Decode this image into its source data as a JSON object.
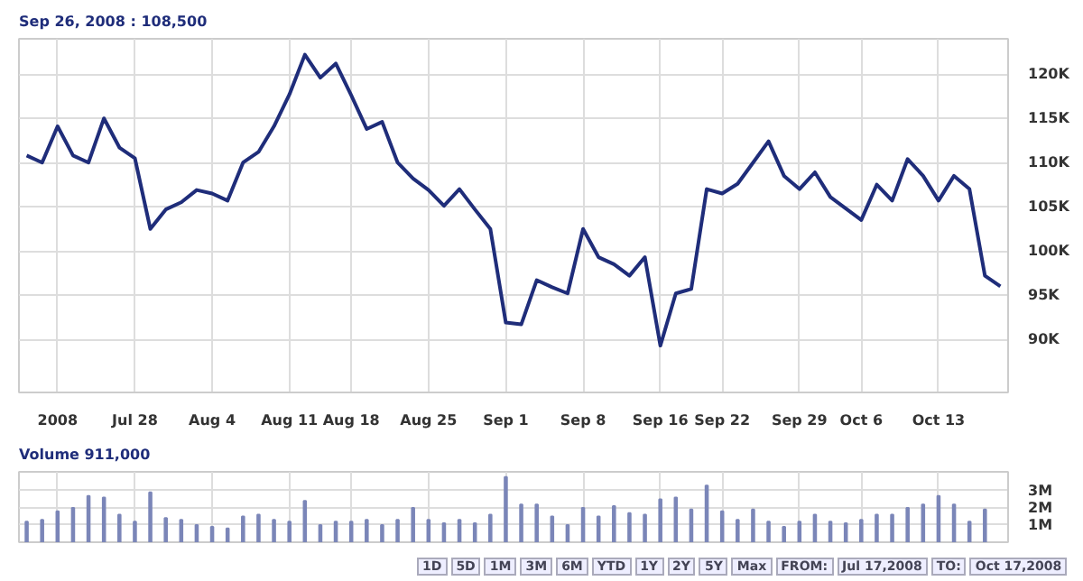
{
  "chart_data": [
    {
      "type": "line",
      "title": "Sep 26, 2008 : 108,500",
      "categories": [
        null,
        null,
        "2008",
        null,
        null,
        null,
        null,
        "Jul 28",
        null,
        null,
        null,
        null,
        "Aug 4",
        null,
        null,
        null,
        null,
        "Aug 11",
        null,
        null,
        null,
        "Aug 18",
        null,
        null,
        null,
        null,
        "Aug 25",
        null,
        null,
        null,
        null,
        "Sep 1",
        null,
        null,
        null,
        null,
        "Sep 8",
        null,
        null,
        null,
        null,
        "Sep 16",
        null,
        null,
        null,
        "Sep 22",
        null,
        null,
        null,
        null,
        "Sep 29",
        null,
        null,
        null,
        "Oct 6",
        null,
        null,
        null,
        null,
        "Oct 13",
        null,
        null,
        null,
        null
      ],
      "series": [
        {
          "color": "#1f2d7a",
          "values": [
            110800,
            110000,
            114100,
            110800,
            110000,
            115000,
            111700,
            110500,
            102500,
            104700,
            105500,
            106900,
            106500,
            105700,
            110000,
            111200,
            114100,
            117700,
            122200,
            119600,
            121200,
            117600,
            113800,
            114600,
            110000,
            108200,
            106900,
            105100,
            107000,
            104700,
            102500,
            91900,
            91700,
            96700,
            95900,
            95200,
            102500,
            99300,
            98500,
            97200,
            99300,
            89300,
            95200,
            95700,
            107000,
            106500,
            107600,
            110000,
            112400,
            108500,
            107000,
            108900,
            106100,
            104800,
            103500,
            107500,
            105700,
            110400,
            108500,
            105700,
            108500,
            107000,
            97200,
            96000
          ]
        }
      ],
      "ylim": [
        84000,
        124000
      ],
      "yticks": [
        {
          "value": 90000,
          "label": "90K"
        },
        {
          "value": 95000,
          "label": "95K"
        },
        {
          "value": 100000,
          "label": "100K"
        },
        {
          "value": 105000,
          "label": "105K"
        },
        {
          "value": 110000,
          "label": "110K"
        },
        {
          "value": 115000,
          "label": "115K"
        },
        {
          "value": 120000,
          "label": "120K"
        }
      ],
      "grid": true
    },
    {
      "type": "bar",
      "title": "Volume 911,000",
      "categories": [
        null,
        null,
        null,
        null,
        null,
        null,
        null,
        null,
        null,
        null,
        null,
        null,
        null,
        null,
        null,
        null,
        null,
        null,
        null,
        null,
        null,
        null,
        null,
        null,
        null,
        null,
        null,
        null,
        null,
        null,
        null,
        null,
        null,
        null,
        null,
        null,
        null,
        null,
        null,
        null,
        null,
        null,
        null,
        null,
        null,
        null,
        null,
        null,
        null,
        null,
        null,
        null,
        null,
        null,
        null,
        null,
        null,
        null,
        null,
        null,
        null,
        null,
        null,
        null
      ],
      "series": [
        {
          "color": "#7b86b8",
          "values": [
            1200000,
            1300000,
            1800000,
            2000000,
            2700000,
            2600000,
            1600000,
            1200000,
            2900000,
            1400000,
            1300000,
            1000000,
            900000,
            800000,
            1500000,
            1600000,
            1300000,
            1200000,
            2400000,
            1000000,
            1200000,
            1200000,
            1300000,
            1000000,
            1300000,
            2000000,
            1300000,
            1100000,
            1300000,
            1100000,
            1600000,
            3800000,
            2200000,
            2200000,
            1500000,
            1000000,
            2000000,
            1500000,
            2100000,
            1700000,
            1600000,
            2500000,
            2600000,
            1900000,
            3300000,
            1800000,
            1300000,
            1900000,
            1200000,
            900000,
            1200000,
            1600000,
            1200000,
            1100000,
            1300000,
            1600000,
            1600000,
            2000000,
            2200000,
            2700000,
            2200000,
            1200000,
            1900000,
            null
          ]
        }
      ],
      "ylim": [
        0,
        4100000
      ],
      "yticks": [
        {
          "value": 1000000,
          "label": "1M"
        },
        {
          "value": 2000000,
          "label": "2M"
        },
        {
          "value": 3000000,
          "label": "3M"
        }
      ],
      "tick_labels": "y",
      "grid": true,
      "annotations": [
        "1D",
        "5D",
        "1M",
        "3M",
        "6M",
        "YTD",
        "1Y",
        "2Y",
        "5Y",
        "Max",
        "FROM:",
        "Jul 17,2008",
        "TO:",
        "Oct 17,2008"
      ]
    }
  ]
}
